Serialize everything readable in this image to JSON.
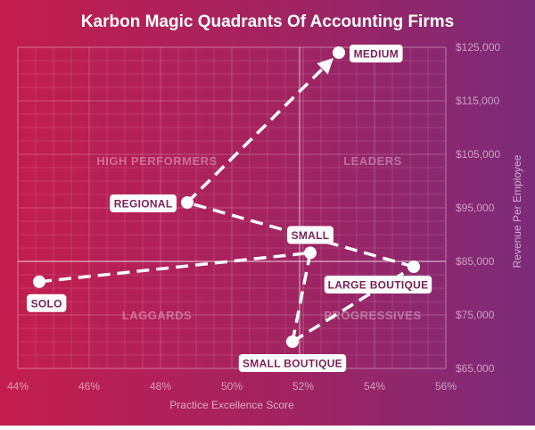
{
  "chart_data": {
    "type": "scatter",
    "title": "Karbon Magic Quadrants Of Accounting Firms",
    "xlabel": "Practice Excellence Score",
    "ylabel": "Revenue Per Employee",
    "xlim": [
      44,
      56
    ],
    "ylim": [
      65000,
      125000
    ],
    "x_ticks": [
      "44%",
      "46%",
      "48%",
      "50%",
      "52%",
      "54%",
      "56%"
    ],
    "y_ticks": [
      "$65,000",
      "$75,000",
      "$85,000",
      "$95,000",
      "$105,000",
      "$115,000",
      "$125,000"
    ],
    "grid": true,
    "quadrant_divider": {
      "x": 51.9,
      "y": 85000
    },
    "quadrants": [
      "HIGH PERFORMERS",
      "LEADERS",
      "LAGGARDS",
      "PROGRESSIVES"
    ],
    "points": [
      {
        "label": "MEDIUM",
        "x": 53.0,
        "y": 124000
      },
      {
        "label": "REGIONAL",
        "x": 48.75,
        "y": 96000
      },
      {
        "label": "SMALL",
        "x": 52.2,
        "y": 86600
      },
      {
        "label": "LARGE BOUTIQUE",
        "x": 55.1,
        "y": 84000
      },
      {
        "label": "SOLO",
        "x": 44.6,
        "y": 81200
      },
      {
        "label": "SMALL BOUTIQUE",
        "x": 51.7,
        "y": 70000
      }
    ],
    "paths": [
      [
        "SOLO",
        "SMALL",
        "SMALL BOUTIQUE",
        "LARGE BOUTIQUE",
        "REGIONAL",
        "MEDIUM"
      ]
    ]
  }
}
